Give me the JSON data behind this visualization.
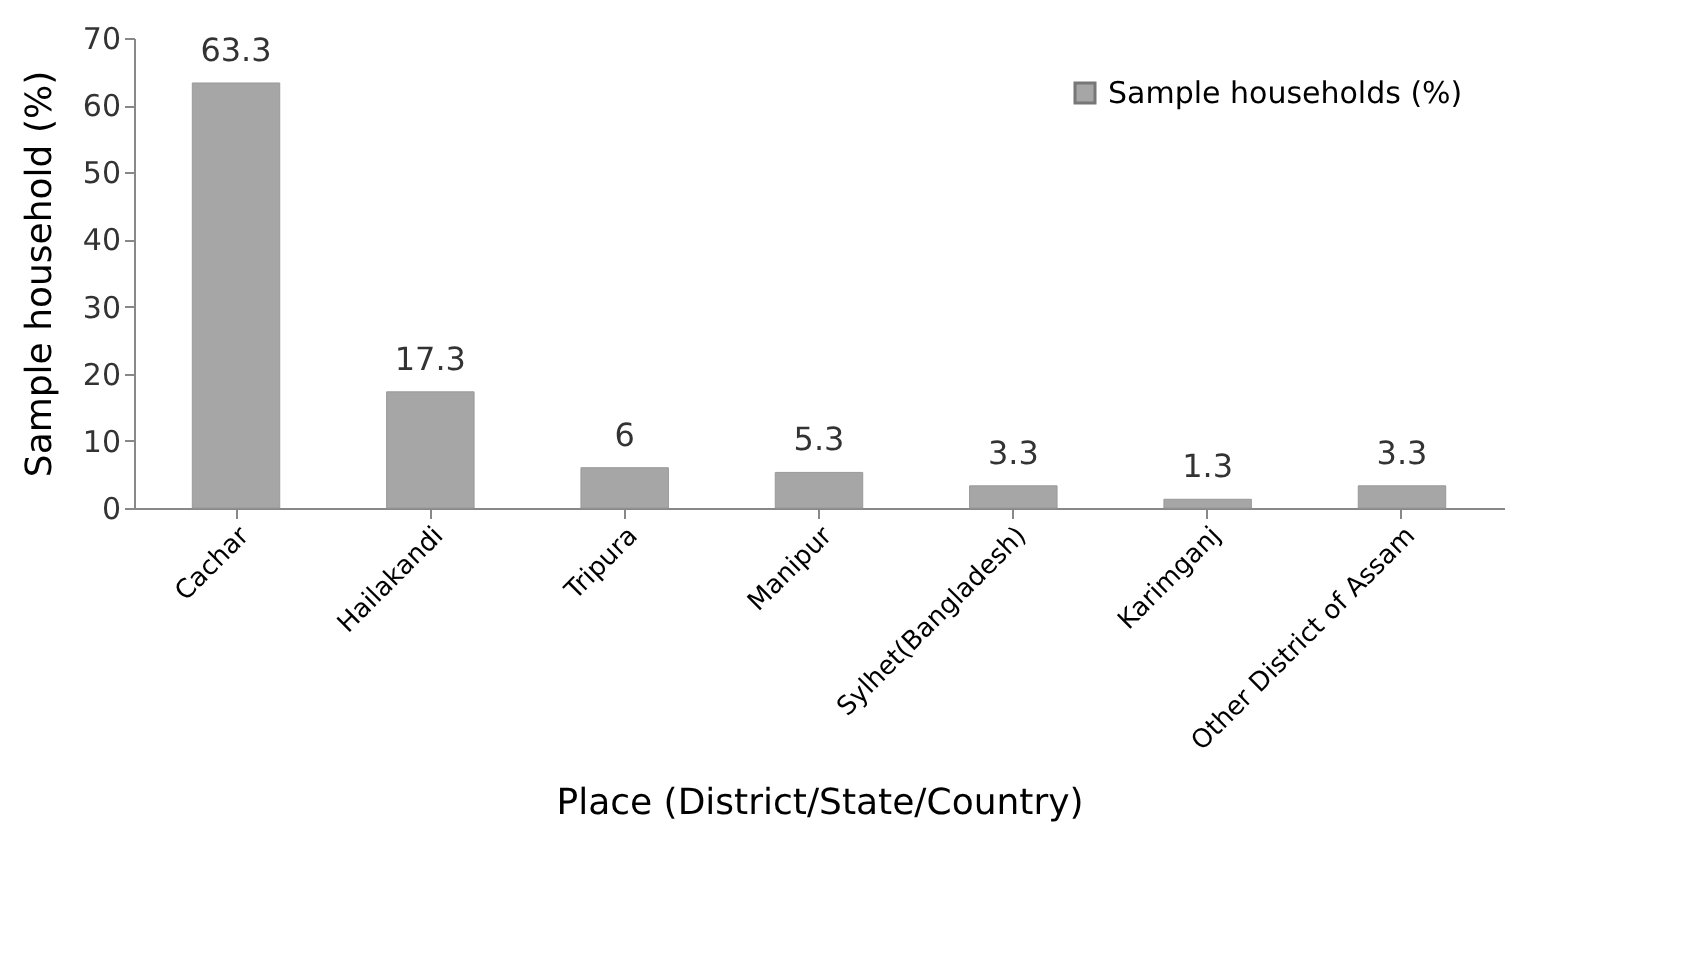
{
  "chart_data": {
    "type": "bar",
    "xlabel": "Place (District/State/Country)",
    "ylabel": "Sample household (%)",
    "categories": [
      "Cachar",
      "Hailakandi",
      "Tripura",
      "Manipur",
      "Sylhet(Bangladesh)",
      "Karimganj",
      "Other District of Assam"
    ],
    "series": [
      {
        "name": "Sample households (%)",
        "color": "#a6a6a6",
        "values": [
          63.3,
          17.3,
          6,
          5.3,
          3.3,
          1.3,
          3.3
        ]
      }
    ],
    "ylim": [
      0,
      70
    ],
    "yticks": [
      0,
      10,
      20,
      30,
      40,
      50,
      60,
      70
    ],
    "grid": false,
    "legend": "top right",
    "data_labels": true
  }
}
